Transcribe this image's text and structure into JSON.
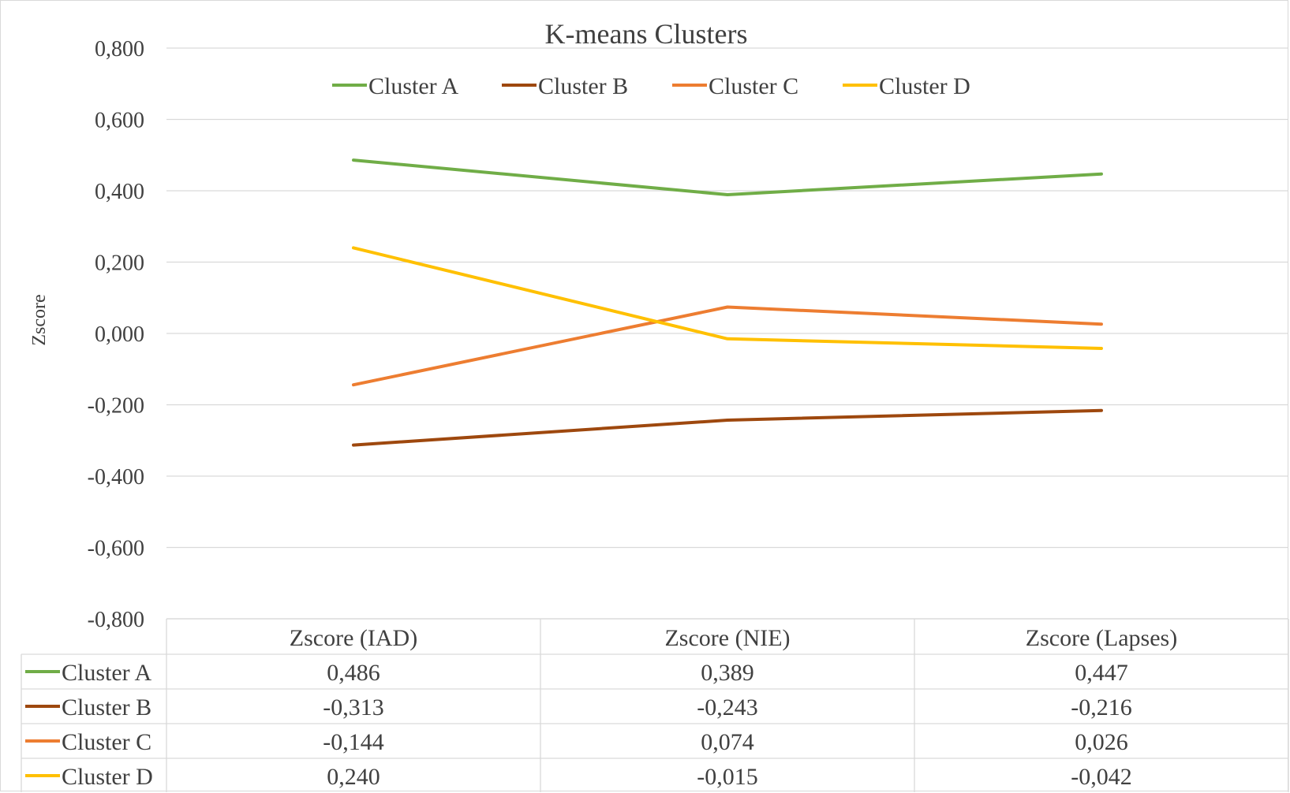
{
  "chart_data": {
    "type": "line",
    "title": "K-means Clusters",
    "ylabel": "Zscore",
    "xlabel": "",
    "categories": [
      "Zscore (IAD)",
      "Zscore (NIE)",
      "Zscore (Lapses)"
    ],
    "ylim": [
      -0.8,
      0.8
    ],
    "yticks": [
      0.8,
      0.6,
      0.4,
      0.2,
      0.0,
      -0.2,
      -0.4,
      -0.6,
      -0.8
    ],
    "ytick_labels": [
      "0,800",
      "0,600",
      "0,400",
      "0,200",
      "0,000",
      "-0,200",
      "-0,400",
      "-0,600",
      "-0,800"
    ],
    "grid": true,
    "legend": "top",
    "data_table": true,
    "series": [
      {
        "name": "Cluster A",
        "color": "#70ad47",
        "values": [
          0.486,
          0.389,
          0.447
        ],
        "labels": [
          "0,486",
          "0,389",
          "0,447"
        ]
      },
      {
        "name": "Cluster B",
        "color": "#9e480e",
        "values": [
          -0.313,
          -0.243,
          -0.216
        ],
        "labels": [
          "-0,313",
          "-0,243",
          "-0,216"
        ]
      },
      {
        "name": "Cluster C",
        "color": "#ed7d31",
        "values": [
          -0.144,
          0.074,
          0.026
        ],
        "labels": [
          "-0,144",
          "0,074",
          "0,026"
        ]
      },
      {
        "name": "Cluster D",
        "color": "#ffc000",
        "values": [
          0.24,
          -0.015,
          -0.042
        ],
        "labels": [
          "0,240",
          "-0,015",
          "-0,042"
        ]
      }
    ]
  }
}
